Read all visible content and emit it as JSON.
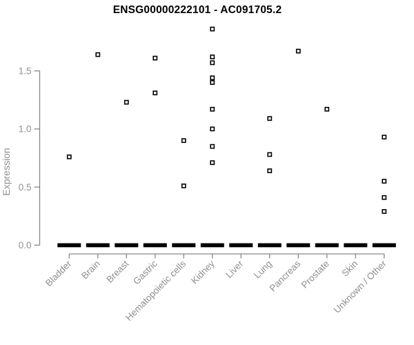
{
  "chart_data": {
    "type": "scatter",
    "title": "ENSG00000222101 - AC091705.2",
    "xlabel": "",
    "ylabel": "Expression",
    "ylim": [
      0,
      1.9
    ],
    "yticks": [
      "0.0",
      "0.5",
      "1.0",
      "1.5"
    ],
    "grid": false,
    "legend_position": "none",
    "marker": "open-square",
    "categories": [
      "Bladder",
      "Brain",
      "Breast",
      "Gastric",
      "Hematopoietic cells",
      "Kidney",
      "Liver",
      "Lung",
      "Pancreas",
      "Prostate",
      "Skin",
      "Unknown / Other"
    ],
    "series": [
      {
        "name": "Bladder",
        "values": [
          0.76
        ],
        "zero_cluster": true
      },
      {
        "name": "Brain",
        "values": [
          1.64
        ],
        "zero_cluster": true
      },
      {
        "name": "Breast",
        "values": [
          1.23
        ],
        "zero_cluster": true
      },
      {
        "name": "Gastric",
        "values": [
          1.61,
          1.31
        ],
        "zero_cluster": true
      },
      {
        "name": "Hematopoietic cells",
        "values": [
          0.9,
          0.51
        ],
        "zero_cluster": true
      },
      {
        "name": "Kidney",
        "values": [
          1.86,
          1.62,
          1.57,
          1.44,
          1.4,
          1.17,
          1.0,
          0.85,
          0.71
        ],
        "zero_cluster": true
      },
      {
        "name": "Liver",
        "values": [],
        "zero_cluster": true
      },
      {
        "name": "Lung",
        "values": [
          1.09,
          0.78,
          0.64
        ],
        "zero_cluster": true
      },
      {
        "name": "Pancreas",
        "values": [
          1.67
        ],
        "zero_cluster": true
      },
      {
        "name": "Prostate",
        "values": [
          1.17
        ],
        "zero_cluster": true
      },
      {
        "name": "Skin",
        "values": [],
        "zero_cluster": true
      },
      {
        "name": "Unknown / Other",
        "values": [
          0.93,
          0.55,
          0.41,
          0.29
        ],
        "zero_cluster": true
      }
    ],
    "zero_cluster_meaning": "dense overlapping points at expression 0 in every category, drawn as a thick black dash"
  },
  "colors": {
    "point": "#000000",
    "point_fill": "#ffffff",
    "axis_line": "#878787",
    "axis_text": "#8f8f8f",
    "title": "#000000",
    "background": "#ffffff",
    "zero_bar": "#000000"
  }
}
